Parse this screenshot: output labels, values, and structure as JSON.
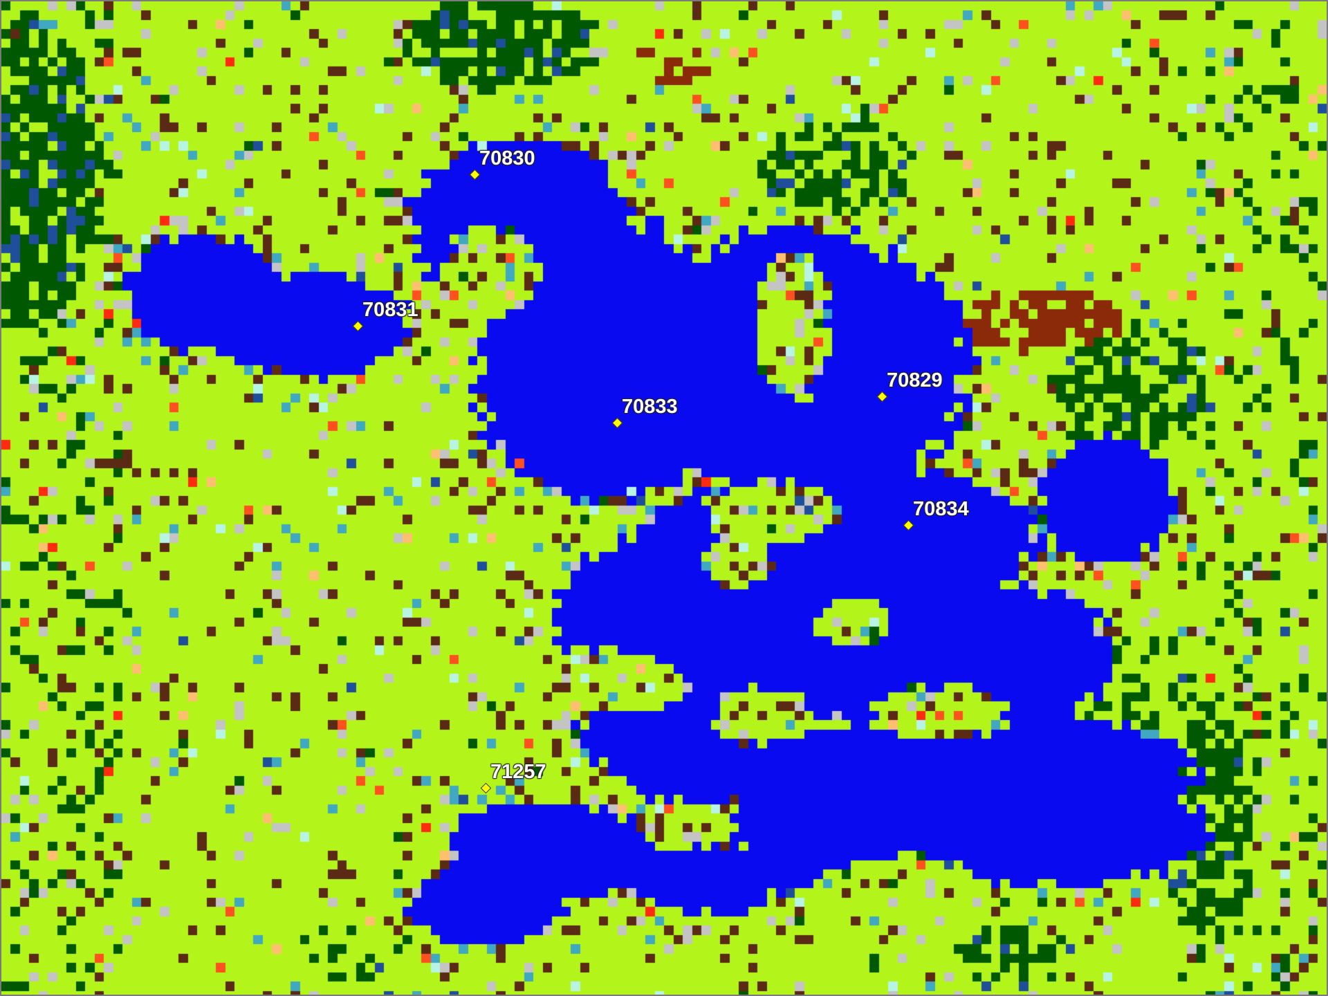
{
  "map": {
    "palette": {
      "water": "#0a0af0",
      "grassland": "#b3f51a",
      "forest": "#005800",
      "soil": "#5a2a14",
      "rust": "#8a2a08",
      "gray": "#c4c4c4",
      "teal": "#40a8c0",
      "steel_blue": "#1f4f9a",
      "light_cyan": "#b8f4e4",
      "red": "#ff2a10",
      "orange_red": "#ff5020",
      "peach": "#ffbf70"
    },
    "stations": [
      {
        "id": "70830"
      },
      {
        "id": "70831"
      },
      {
        "id": "70833"
      },
      {
        "id": "70829"
      },
      {
        "id": "70834"
      },
      {
        "id": "71257"
      }
    ]
  }
}
